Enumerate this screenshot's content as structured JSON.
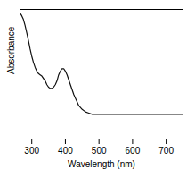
{
  "chart_data": {
    "type": "line",
    "xlabel": "Wavelength (nm)",
    "ylabel": "Absorbance",
    "x": [
      265,
      270,
      275,
      280,
      285,
      290,
      295,
      300,
      305,
      310,
      315,
      320,
      325,
      330,
      335,
      340,
      345,
      350,
      355,
      360,
      365,
      370,
      375,
      380,
      385,
      390,
      395,
      400,
      405,
      410,
      415,
      420,
      425,
      430,
      435,
      440,
      450,
      460,
      470,
      480,
      490,
      500,
      510,
      520,
      530,
      540,
      550,
      560,
      570,
      580,
      590,
      600,
      620,
      650,
      700,
      750
    ],
    "values": [
      1.02,
      1.0,
      0.97,
      0.92,
      0.86,
      0.8,
      0.73,
      0.67,
      0.62,
      0.58,
      0.55,
      0.53,
      0.52,
      0.51,
      0.49,
      0.47,
      0.44,
      0.42,
      0.41,
      0.41,
      0.42,
      0.44,
      0.47,
      0.52,
      0.55,
      0.57,
      0.57,
      0.55,
      0.52,
      0.48,
      0.44,
      0.4,
      0.36,
      0.33,
      0.3,
      0.27,
      0.24,
      0.22,
      0.21,
      0.2,
      0.2,
      0.2,
      0.2,
      0.2,
      0.2,
      0.2,
      0.2,
      0.2,
      0.2,
      0.2,
      0.2,
      0.2,
      0.2,
      0.2,
      0.2,
      0.2
    ],
    "color": "#111111",
    "xlim": [
      265,
      750
    ],
    "ylim": [
      0,
      1.05
    ],
    "xticks": [
      300,
      400,
      500,
      600,
      700
    ],
    "tick_labels": "x"
  }
}
